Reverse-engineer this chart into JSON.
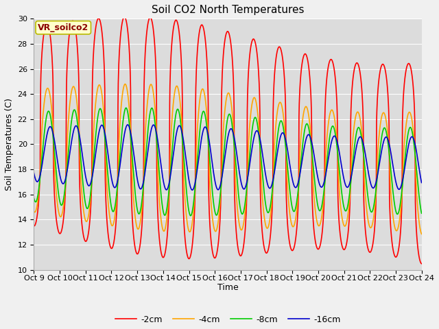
{
  "title": "Soil CO2 North Temperatures",
  "ylabel": "Soil Temperatures (C)",
  "xlabel": "Time",
  "annotation": "VR_soilco2",
  "ylim": [
    10,
    30
  ],
  "fig_facecolor": "#f0f0f0",
  "ax_facecolor": "#dcdcdc",
  "series": [
    {
      "label": "-2cm",
      "color": "#ff0000",
      "amplitude": 8.5,
      "mean": 21.5,
      "phase": 0.0,
      "trend": -0.2,
      "sharpness": 3.0
    },
    {
      "label": "-4cm",
      "color": "#ffa500",
      "amplitude": 5.2,
      "mean": 19.5,
      "phase": 0.18,
      "trend": -0.12,
      "sharpness": 1.5
    },
    {
      "label": "-8cm",
      "color": "#00cc00",
      "amplitude": 3.8,
      "mean": 19.0,
      "phase": 0.4,
      "trend": -0.08,
      "sharpness": 1.0
    },
    {
      "label": "-16cm",
      "color": "#0000cc",
      "amplitude": 2.3,
      "mean": 19.2,
      "phase": 0.8,
      "trend": -0.05,
      "sharpness": 1.0
    }
  ],
  "xtick_labels": [
    "Oct 9",
    "Oct 10",
    "Oct 11",
    "Oct 12",
    "Oct 13",
    "Oct 14",
    "Oct 15",
    "Oct 16",
    "Oct 17",
    "Oct 18",
    "Oct 19",
    "Oct 20",
    "Oct 21",
    "Oct 22",
    "Oct 23",
    "Oct 24"
  ],
  "n_points": 1440,
  "n_days": 15,
  "title_fontsize": 11,
  "axis_label_fontsize": 9,
  "tick_fontsize": 8,
  "legend_fontsize": 9,
  "annotation_fontsize": 9
}
